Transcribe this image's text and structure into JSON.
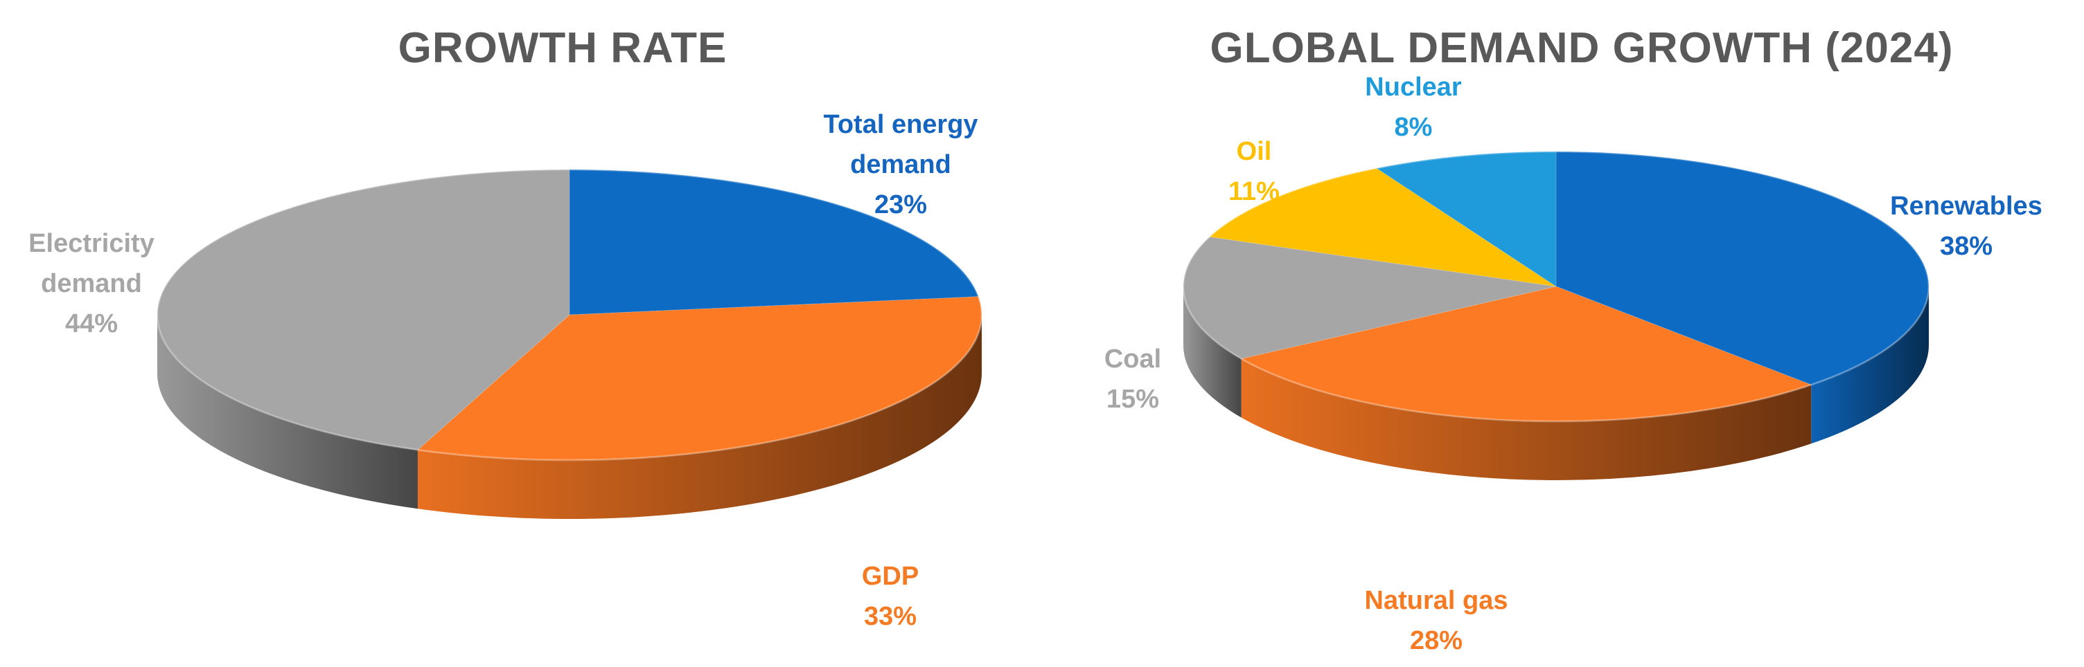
{
  "chart_data": [
    {
      "type": "pie",
      "title": "GROWTH RATE",
      "slices": [
        {
          "key": "total_energy",
          "label_lines": [
            "Total energy",
            "demand"
          ],
          "value": 23,
          "value_label": "23%",
          "color": "#0E6BC4",
          "label_color": "#1565C0"
        },
        {
          "key": "gdp",
          "label_lines": [
            "GDP"
          ],
          "value": 33,
          "value_label": "33%",
          "color": "#FC7A23",
          "label_color": "#F57A24"
        },
        {
          "key": "electricity",
          "label_lines": [
            "Electricity",
            "demand"
          ],
          "value": 44,
          "value_label": "44%",
          "color": "#A6A6A6",
          "label_color": "#A6A6A6"
        }
      ]
    },
    {
      "type": "pie",
      "title": "GLOBAL DEMAND GROWTH (2024)",
      "slices": [
        {
          "key": "renewables",
          "label_lines": [
            "Renewables"
          ],
          "value": 38,
          "value_label": "38%",
          "color": "#0E6BC4",
          "label_color": "#1565C0"
        },
        {
          "key": "natural_gas",
          "label_lines": [
            "Natural gas"
          ],
          "value": 28,
          "value_label": "28%",
          "color": "#FC7A23",
          "label_color": "#F57A24"
        },
        {
          "key": "coal",
          "label_lines": [
            "Coal"
          ],
          "value": 15,
          "value_label": "15%",
          "color": "#A6A6A6",
          "label_color": "#A6A6A6"
        },
        {
          "key": "oil",
          "label_lines": [
            "Oil"
          ],
          "value": 11,
          "value_label": "11%",
          "color": "#FFC000",
          "label_color": "#FFC000"
        },
        {
          "key": "nuclear",
          "label_lines": [
            "Nuclear"
          ],
          "value": 8,
          "value_label": "8%",
          "color": "#1F9BDB",
          "label_color": "#1F9BDB"
        }
      ]
    }
  ]
}
